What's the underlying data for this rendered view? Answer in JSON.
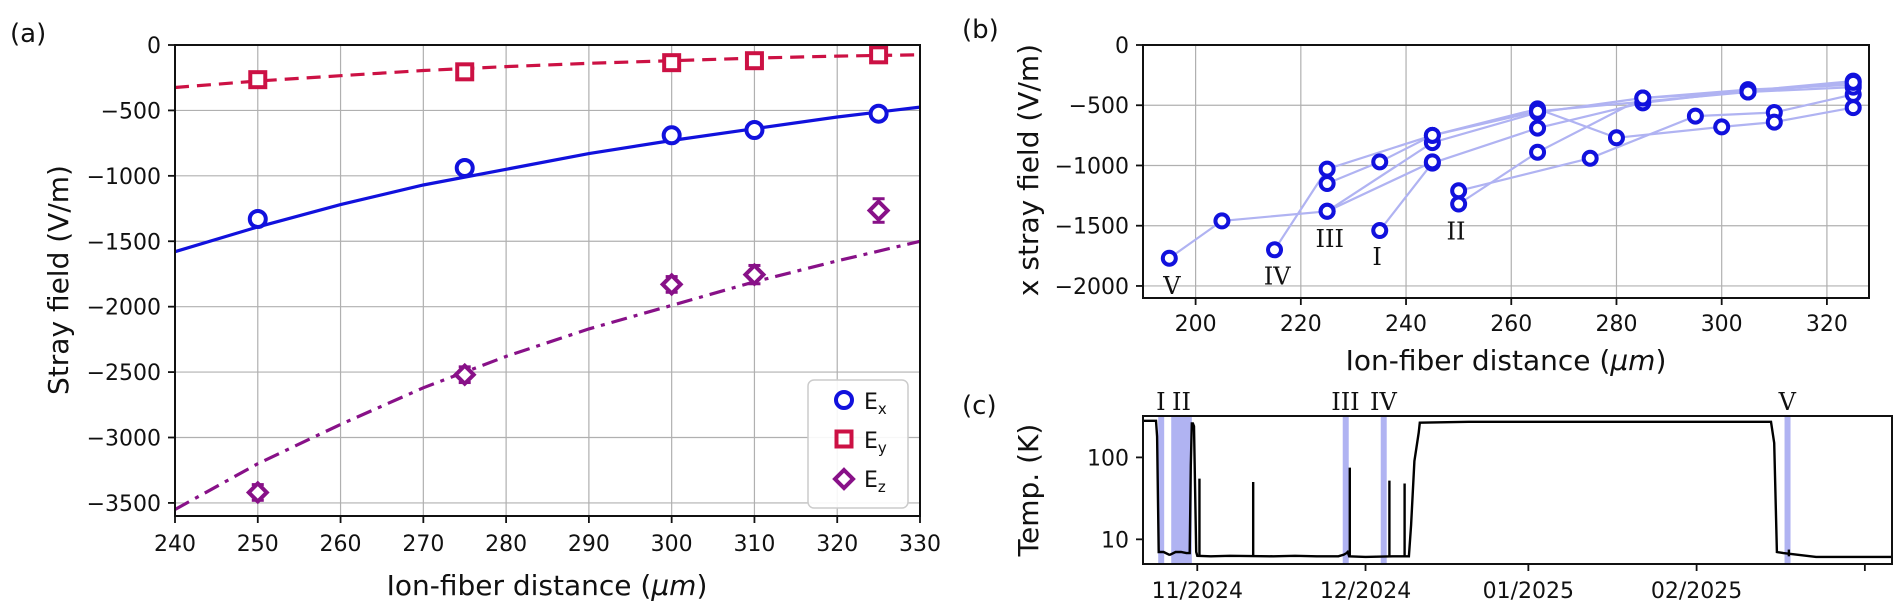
{
  "chart_data": [
    {
      "panel_label": "(a)",
      "type": "scatter",
      "xlabel_prefix": "Ion-fiber distance (",
      "xlabel_unit": "μm",
      "xlabel_suffix": ")",
      "ylabel": "Stray field (V/m)",
      "xlim": [
        240,
        330
      ],
      "ylim": [
        -3600,
        0
      ],
      "xticks": [
        240,
        250,
        260,
        270,
        280,
        290,
        300,
        310,
        320,
        330
      ],
      "yticks": [
        0,
        -500,
        -1000,
        -1500,
        -2000,
        -2500,
        -3000,
        -3500
      ],
      "grid": true,
      "legend_position": "bottom-right",
      "series": [
        {
          "name": "Ex",
          "legend_main": "E",
          "legend_sub": "x",
          "marker": "circle",
          "color": "#1111dd",
          "fit_style": "solid",
          "x": [
            250,
            275,
            300,
            310,
            325
          ],
          "y": [
            -1330,
            -940,
            -690,
            -650,
            -525
          ],
          "yerr": [
            20,
            20,
            20,
            20,
            20
          ],
          "fit_x": [
            240,
            250,
            260,
            270,
            280,
            290,
            300,
            310,
            320,
            330
          ],
          "fit_y": [
            -1580,
            -1390,
            -1220,
            -1070,
            -950,
            -830,
            -730,
            -640,
            -550,
            -475
          ]
        },
        {
          "name": "Ey",
          "legend_main": "E",
          "legend_sub": "y",
          "marker": "square",
          "color": "#cc1144",
          "fit_style": "dashed",
          "x": [
            250,
            275,
            300,
            310,
            325
          ],
          "y": [
            -265,
            -205,
            -135,
            -120,
            -75
          ],
          "yerr": [
            15,
            15,
            15,
            15,
            15
          ],
          "fit_x": [
            240,
            250,
            260,
            270,
            280,
            290,
            300,
            310,
            320,
            330
          ],
          "fit_y": [
            -325,
            -275,
            -235,
            -195,
            -165,
            -140,
            -120,
            -100,
            -85,
            -75
          ]
        },
        {
          "name": "Ez",
          "legend_main": "E",
          "legend_sub": "z",
          "marker": "diamond",
          "color": "#881188",
          "fit_style": "dashdot",
          "x": [
            250,
            275,
            300,
            310,
            325
          ],
          "y": [
            -3420,
            -2520,
            -1830,
            -1755,
            -1265
          ],
          "yerr": [
            60,
            60,
            60,
            70,
            90
          ],
          "fit_x": [
            240,
            250,
            260,
            270,
            280,
            290,
            300,
            310,
            320,
            330
          ],
          "fit_y": [
            -3550,
            -3200,
            -2900,
            -2620,
            -2380,
            -2170,
            -1990,
            -1810,
            -1650,
            -1500
          ]
        }
      ]
    },
    {
      "panel_label": "(b)",
      "type": "line",
      "xlabel_prefix": "Ion-fiber distance (",
      "xlabel_unit": "μm",
      "xlabel_suffix": ")",
      "ylabel": "x stray field (V/m)",
      "xlim": [
        190,
        328
      ],
      "ylim": [
        -2100,
        0
      ],
      "xticks": [
        200,
        220,
        240,
        260,
        280,
        300,
        320
      ],
      "yticks": [
        0,
        -500,
        -1000,
        -1500,
        -2000
      ],
      "grid": true,
      "marker_color": "#1111dd",
      "line_color": "#b0b3f2",
      "series": [
        {
          "name": "I",
          "x": [
            235,
            245,
            265,
            285,
            305,
            325
          ],
          "y": [
            -1540,
            -980,
            -690,
            -480,
            -380,
            -300
          ]
        },
        {
          "name": "II",
          "x": [
            250,
            265,
            285,
            305,
            325
          ],
          "y": [
            -1320,
            -890,
            -440,
            -370,
            -330
          ]
        },
        {
          "name": "II",
          "x": [
            250,
            275,
            295,
            310,
            325
          ],
          "y": [
            -1210,
            -940,
            -590,
            -560,
            -410
          ]
        },
        {
          "name": "III",
          "x": [
            225,
            245,
            265,
            285,
            305,
            325
          ],
          "y": [
            -1380,
            -810,
            -560,
            -440,
            -390,
            -350
          ]
        },
        {
          "name": "III",
          "x": [
            225,
            235,
            245,
            265,
            280,
            300,
            310,
            325
          ],
          "y": [
            -1150,
            -970,
            -750,
            -530,
            -770,
            -680,
            -640,
            -520
          ]
        },
        {
          "name": "IV",
          "x": [
            215,
            225,
            245,
            265,
            305,
            325
          ],
          "y": [
            -1700,
            -1030,
            -750,
            -550,
            -390,
            -310
          ]
        },
        {
          "name": "V",
          "x": [
            195,
            205,
            225,
            245
          ],
          "y": [
            -1770,
            -1460,
            -1380,
            -970
          ]
        }
      ],
      "annotations": [
        {
          "text": "V",
          "x": 195.5,
          "y": -2000
        },
        {
          "text": "IV",
          "x": 215.5,
          "y": -1920
        },
        {
          "text": "III",
          "x": 225.5,
          "y": -1610
        },
        {
          "text": "I",
          "x": 234.5,
          "y": -1760
        },
        {
          "text": "II",
          "x": 249.5,
          "y": -1550
        }
      ]
    },
    {
      "panel_label": "(c)",
      "type": "line",
      "ylabel": "Temp. (K)",
      "yscale": "log",
      "ylim": [
        5,
        320
      ],
      "yticks": [
        100,
        10
      ],
      "ytick_labels": [
        "100",
        "10"
      ],
      "xlim_days": [
        0,
        138
      ],
      "xticks_days": [
        10,
        41,
        71,
        102,
        133
      ],
      "xtick_labels": [
        "11/2024",
        "12/2024",
        "01/2025",
        "02/2025"
      ],
      "xtick_label_days": [
        10,
        41,
        71,
        102
      ],
      "color": "#000000",
      "highlight_color": "#b0b3f2",
      "highlight_spans": [
        {
          "label": "I",
          "start": 2.8,
          "end": 3.8
        },
        {
          "label": "II",
          "start": 5.2,
          "end": 9.0
        },
        {
          "label": "III",
          "start": 36.8,
          "end": 37.8
        },
        {
          "label": "IV",
          "start": 43.8,
          "end": 44.8
        },
        {
          "label": "V",
          "start": 118.2,
          "end": 119.2
        }
      ],
      "trace_days": [
        0,
        2.4,
        2.6,
        2.9,
        3.8,
        4.8,
        5.0,
        6.0,
        7.0,
        8.0,
        8.6,
        8.8,
        9.0,
        9.2,
        9.4,
        9.8,
        10.0,
        12.5,
        16.0,
        24.0,
        28.0,
        32.0,
        36.0,
        37.0,
        37.5,
        37.7,
        38.0,
        41.0,
        46.0,
        49.0,
        49.4,
        50.0,
        50.8,
        51.0,
        60.0,
        80.0,
        100.0,
        115.7,
        116.3,
        116.8,
        118.0,
        124.0,
        130.0,
        134.0,
        138.0
      ],
      "trace_temp": [
        280,
        280,
        180,
        7,
        7,
        6.5,
        6.5,
        7,
        7,
        6.8,
        6.8,
        80,
        260,
        260,
        240,
        7,
        6.3,
        6.2,
        6.3,
        6.2,
        6.3,
        6.2,
        6.2,
        6.5,
        6.8,
        7,
        6.2,
        6.1,
        6.2,
        6.2,
        15,
        90,
        200,
        265,
        272,
        272,
        272,
        272,
        150,
        7,
        6.8,
        6.1,
        6.1,
        6.1,
        6.1
      ],
      "spikes": [
        {
          "day": 10.4,
          "temp": 55
        },
        {
          "day": 20.3,
          "temp": 50
        },
        {
          "day": 38.1,
          "temp": 75
        },
        {
          "day": 45.4,
          "temp": 52
        },
        {
          "day": 48.2,
          "temp": 48
        },
        {
          "day": 119.0,
          "temp": 7.5
        }
      ]
    }
  ]
}
